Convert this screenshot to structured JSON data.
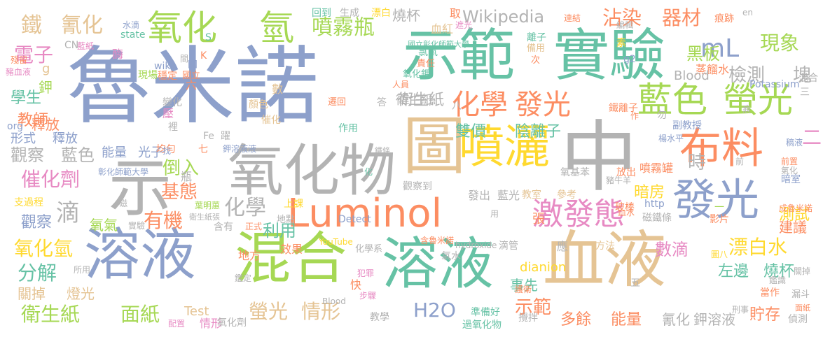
{
  "colors": {
    "blue": "#8DA0CB",
    "orange": "#FC8D62",
    "green": "#A6D854",
    "yellow": "#FFD92F",
    "tan": "#E5C494",
    "gray": "#B3B3B3",
    "pink": "#E78AC3",
    "teal": "#66C2A5"
  },
  "words": [
    {
      "text": "魯米諾",
      "color": "#8DA0CB"
    },
    {
      "text": "中",
      "color": "#B3B3B3"
    },
    {
      "text": "示範",
      "color": "#66C2A5"
    },
    {
      "text": "實驗",
      "color": "#66C2A5"
    },
    {
      "text": "圖",
      "color": "#E5C494"
    },
    {
      "text": "噴灑",
      "color": "#FFD92F"
    },
    {
      "text": "氧化物",
      "color": "#B3B3B3"
    },
    {
      "text": "示",
      "color": "#B3B3B3"
    },
    {
      "text": "溶液",
      "color": "#8DA0CB"
    },
    {
      "text": "混合",
      "color": "#A6D854"
    },
    {
      "text": "溶液",
      "color": "#66C2A5"
    },
    {
      "text": "血液",
      "color": "#E5C494"
    },
    {
      "text": "Luminol",
      "color": "#FC8D62"
    },
    {
      "text": "布料",
      "color": "#FC8D62"
    },
    {
      "text": "發光",
      "color": "#8DA0CB"
    },
    {
      "text": "氧化",
      "color": "#A6D854"
    },
    {
      "text": "氫",
      "color": "#A6D854"
    },
    {
      "text": "藍色",
      "color": "#A6D854"
    },
    {
      "text": "螢光",
      "color": "#A6D854"
    },
    {
      "text": "化學",
      "color": "#FC8D62"
    },
    {
      "text": "發光",
      "color": "#FC8D62"
    },
    {
      "text": "激發態",
      "color": "#E78AC3"
    },
    {
      "text": "噴霧瓶",
      "color": "#A6D854"
    },
    {
      "text": "鐵",
      "color": "#E5C494"
    },
    {
      "text": "氰化",
      "color": "#E5C494"
    },
    {
      "text": "mL",
      "color": "#8DA0CB"
    },
    {
      "text": "現象",
      "color": "#A6D854"
    },
    {
      "text": "沾染",
      "color": "#FC8D62"
    },
    {
      "text": "器材",
      "color": "#FC8D62"
    },
    {
      "text": "Wikipedia",
      "color": "#B3B3B3"
    },
    {
      "text": "檢測",
      "color": "#B3B3B3"
    },
    {
      "text": "塊",
      "color": "#B3B3B3"
    },
    {
      "text": "黑板",
      "color": "#A6D854"
    },
    {
      "text": "蒸餾水",
      "color": "#FC8D62"
    },
    {
      "text": "Blood",
      "color": "#B3B3B3"
    },
    {
      "text": "電子",
      "color": "#E78AC3"
    },
    {
      "text": "學生",
      "color": "#66C2A5"
    },
    {
      "text": "教師",
      "color": "#FC8D62"
    },
    {
      "text": "雙價",
      "color": "#66C2A5"
    },
    {
      "text": "陰離子",
      "color": "#66C2A5"
    },
    {
      "text": "衛生紙",
      "color": "#B3B3B3"
    },
    {
      "text": "觀察",
      "color": "#B3B3B3"
    },
    {
      "text": "藍色",
      "color": "#B3B3B3"
    },
    {
      "text": "催化劑",
      "color": "#E78AC3"
    },
    {
      "text": "能量",
      "color": "#8DA0CB"
    },
    {
      "text": "光子",
      "color": "#8DA0CB"
    },
    {
      "text": "倒入",
      "color": "#A6D854"
    },
    {
      "text": "基態",
      "color": "#FC8D62"
    },
    {
      "text": "有機",
      "color": "#FC8D62"
    },
    {
      "text": "化學",
      "color": "#B3B3B3"
    },
    {
      "text": "滴",
      "color": "#B3B3B3"
    },
    {
      "text": "氧氣",
      "color": "#A6D854"
    },
    {
      "text": "觀察",
      "color": "#8DA0CB"
    },
    {
      "text": "氧化氫",
      "color": "#FFD92F"
    },
    {
      "text": "分解",
      "color": "#66C2A5"
    },
    {
      "text": "關掉",
      "color": "#E5C494"
    },
    {
      "text": "燈光",
      "color": "#E5C494"
    },
    {
      "text": "衛生紙",
      "color": "#A6D854"
    },
    {
      "text": "面紙",
      "color": "#A6D854"
    },
    {
      "text": "螢光",
      "color": "#E5C494"
    },
    {
      "text": "情形",
      "color": "#E5C494"
    },
    {
      "text": "H2O",
      "color": "#8DA0CB"
    },
    {
      "text": "示範",
      "color": "#FC8D62"
    },
    {
      "text": "多餘",
      "color": "#FC8D62"
    },
    {
      "text": "能量",
      "color": "#FC8D62"
    },
    {
      "text": "氰化",
      "color": "#B3B3B3"
    },
    {
      "text": "鉀溶液",
      "color": "#B3B3B3"
    },
    {
      "text": "貯存",
      "color": "#FC8D62"
    },
    {
      "text": "漂白水",
      "color": "#FFD92F"
    },
    {
      "text": "數滴",
      "color": "#E78AC3"
    },
    {
      "text": "左邊",
      "color": "#66C2A5"
    },
    {
      "text": "燒杯",
      "color": "#66C2A5"
    },
    {
      "text": "dianion",
      "color": "#FFD92F"
    },
    {
      "text": "事先",
      "color": "#66C2A5"
    },
    {
      "text": "測試",
      "color": "#FFD92F"
    },
    {
      "text": "建議",
      "color": "#FC8D62"
    },
    {
      "text": "暗房",
      "color": "#FFD92F"
    },
    {
      "text": "時",
      "color": "#B3B3B3"
    },
    {
      "text": "二",
      "color": "#E78AC3"
    },
    {
      "text": "利用",
      "color": "#66C2A5"
    },
    {
      "text": "釋放",
      "color": "#FC8D62"
    },
    {
      "text": "形式",
      "color": "#8DA0CB"
    },
    {
      "text": "釋放",
      "color": "#8DA0CB"
    },
    {
      "text": "燒杯",
      "color": "#B3B3B3"
    },
    {
      "text": "生成",
      "color": "#B3B3B3"
    },
    {
      "text": "回到",
      "color": "#66C2A5"
    },
    {
      "text": "漂白",
      "color": "#FFD92F"
    },
    {
      "text": "血紅",
      "color": "#E5C494"
    },
    {
      "text": "取",
      "color": "#FC8D62"
    },
    {
      "text": "連結",
      "color": "#FC8D62"
    },
    {
      "text": "痕跡",
      "color": "#FC8D62"
    },
    {
      "text": "en",
      "color": "#B3B3B3"
    },
    {
      "text": "離子",
      "color": "#66C2A5"
    },
    {
      "text": "備用",
      "color": "#E5C494"
    },
    {
      "text": "國立彰化師範大學",
      "color": "#66C2A5"
    },
    {
      "text": "氯氣",
      "color": "#66C2A5"
    },
    {
      "text": "責任",
      "color": "#FC8D62"
    },
    {
      "text": "氧化鉀",
      "color": "#66C2A5"
    },
    {
      "text": "Potassium",
      "color": "#8DA0CB"
    },
    {
      "text": "混合",
      "color": "#B3B3B3"
    },
    {
      "text": "鐵離子",
      "color": "#FC8D62"
    },
    {
      "text": "YouTube",
      "color": "#FFD92F"
    },
    {
      "text": "化學系",
      "color": "#B3B3B3"
    },
    {
      "text": "Detect",
      "color": "#8DA0CB"
    },
    {
      "text": "http",
      "color": "#8DA0CB"
    },
    {
      "text": "磁鐵條",
      "color": "#B3B3B3"
    },
    {
      "text": "影片",
      "color": "#FC8D62"
    },
    {
      "text": "玻棒",
      "color": "#FC8D62"
    },
    {
      "text": "噴霧罐",
      "color": "#FC8D62"
    },
    {
      "text": "氧基苯",
      "color": "#B3B3B3"
    },
    {
      "text": "hydroxide",
      "color": "#B3B3B3"
    },
    {
      "text": "Test",
      "color": "#E5C494"
    },
    {
      "text": "情形",
      "color": "#E78AC3"
    },
    {
      "text": "氧化劑",
      "color": "#B3B3B3"
    },
    {
      "text": "教學",
      "color": "#B3B3B3"
    },
    {
      "text": "準備好",
      "color": "#66C2A5"
    },
    {
      "text": "過氧化物",
      "color": "#66C2A5"
    },
    {
      "text": "攪拌",
      "color": "#B3B3B3"
    },
    {
      "text": "當作",
      "color": "#FC8D62"
    },
    {
      "text": "漏斗",
      "color": "#B3B3B3"
    },
    {
      "text": "偵測",
      "color": "#B3B3B3"
    },
    {
      "text": "面紙",
      "color": "#FC8D62"
    },
    {
      "text": "鉀",
      "color": "#A6D854"
    },
    {
      "text": "wiki",
      "color": "#8DA0CB"
    },
    {
      "text": "現場",
      "color": "#A6D854"
    },
    {
      "text": "CN",
      "color": "#B3B3B3"
    },
    {
      "text": "state",
      "color": "#66C2A5"
    },
    {
      "text": "水滴",
      "color": "#8DA0CB"
    },
    {
      "text": "酶",
      "color": "#E78AC3"
    },
    {
      "text": "org",
      "color": "#8DA0CB"
    },
    {
      "text": "變化",
      "color": "#B3B3B3"
    },
    {
      "text": "穩定",
      "color": "#FC8D62"
    },
    {
      "text": "Fe",
      "color": "#B3B3B3"
    },
    {
      "text": "躍",
      "color": "#B3B3B3"
    },
    {
      "text": "均勻",
      "color": "#FC8D62"
    },
    {
      "text": "七",
      "color": "#FC8D62"
    },
    {
      "text": "數",
      "color": "#E5C494"
    },
    {
      "text": "顏色",
      "color": "#E5C494"
    },
    {
      "text": "催化",
      "color": "#E5C494"
    },
    {
      "text": "作用",
      "color": "#66C2A5"
    },
    {
      "text": "遷回",
      "color": "#FC8D62"
    },
    {
      "text": "答",
      "color": "#B3B3B3"
    },
    {
      "text": "衛生紙",
      "color": "#B3B3B3"
    },
    {
      "text": "發出",
      "color": "#B3B3B3"
    },
    {
      "text": "藍光",
      "color": "#B3B3B3"
    },
    {
      "text": "觀察到",
      "color": "#B3B3B3"
    },
    {
      "text": "教室",
      "color": "#E5C494"
    },
    {
      "text": "參考",
      "color": "#E5C494"
    },
    {
      "text": "張",
      "color": "#FC8D62"
    },
    {
      "text": "放出",
      "color": "#FC8D62"
    },
    {
      "text": "刑事",
      "color": "#B3B3B3"
    },
    {
      "text": "豬牛羊",
      "color": "#B3B3B3"
    },
    {
      "text": "地方",
      "color": "#FC8D62"
    },
    {
      "text": "效果",
      "color": "#FC8D62"
    },
    {
      "text": "上課",
      "color": "#FFD92F"
    },
    {
      "text": "正式",
      "color": "#FC8D62"
    },
    {
      "text": "含有",
      "color": "#B3B3B3"
    },
    {
      "text": "地點",
      "color": "#B3B3B3"
    },
    {
      "text": "葉明蕙",
      "color": "#A6D854"
    },
    {
      "text": "衛生紙張",
      "color": "#B3B3B3"
    },
    {
      "text": "快",
      "color": "#FC8D62"
    },
    {
      "text": "步驟",
      "color": "#E78AC3"
    },
    {
      "text": "鑑定",
      "color": "#B3B3B3"
    },
    {
      "text": "含魯米諾",
      "color": "#FC8D62"
    },
    {
      "text": "氧水",
      "color": "#B3B3B3"
    },
    {
      "text": "滴管",
      "color": "#B3B3B3"
    },
    {
      "text": "應",
      "color": "#B3B3B3"
    },
    {
      "text": "方法",
      "color": "#E5C494"
    },
    {
      "text": "五",
      "color": "#B3B3B3"
    },
    {
      "text": "犯罪",
      "color": "#E78AC3"
    },
    {
      "text": "護衛",
      "color": "#FC8D62"
    },
    {
      "text": "副教授",
      "color": "#8DA0CB"
    },
    {
      "text": "楊水平",
      "color": "#8DA0CB"
    },
    {
      "text": "支過程",
      "color": "#FFD92F"
    },
    {
      "text": "所用",
      "color": "#B3B3B3"
    },
    {
      "text": "配置",
      "color": "#E78AC3"
    },
    {
      "text": "Blood",
      "color": "#B3B3B3"
    },
    {
      "text": "鑑識",
      "color": "#B3B3B3"
    },
    {
      "text": "暗室",
      "color": "#8DA0CB"
    },
    {
      "text": "成魯米諾",
      "color": "#FC8D62"
    },
    {
      "text": "前",
      "color": "#B3B3B3"
    },
    {
      "text": "前置",
      "color": "#FC8D62"
    },
    {
      "text": "圖八",
      "color": "#FFD92F"
    },
    {
      "text": "勿",
      "color": "#B3B3B3"
    },
    {
      "text": "g",
      "color": "#E5C494"
    },
    {
      "text": "g2",
      "color": "#8DA0CB"
    },
    {
      "text": "K",
      "color": "#FC8D62"
    },
    {
      "text": "S",
      "color": "#66C2A5"
    },
    {
      "text": "四",
      "color": "#8DA0CB"
    },
    {
      "text": "國立",
      "color": "#FC8D62"
    },
    {
      "text": "六",
      "color": "#FC8D62"
    },
    {
      "text": "人員",
      "color": "#FC8D62"
    },
    {
      "text": "八",
      "color": "#B3B3B3"
    },
    {
      "text": "裡",
      "color": "#B3B3B3"
    },
    {
      "text": "壓",
      "color": "#E78AC3"
    },
    {
      "text": "三",
      "color": "#B3B3B3"
    },
    {
      "text": "次",
      "color": "#FC8D62"
    },
    {
      "text": "遮光",
      "color": "#E78AC3"
    },
    {
      "text": "編輯",
      "color": "#B3B3B3"
    },
    {
      "text": "素",
      "color": "#FFD92F"
    },
    {
      "text": "彰化師範大學",
      "color": "#8DA0CB"
    },
    {
      "text": "鉀溶液液",
      "color": "#8DA0CB"
    },
    {
      "text": "鐵條",
      "color": "#B3B3B3"
    },
    {
      "text": "氣化",
      "color": "#B3B3B3"
    },
    {
      "text": "找",
      "color": "#8DA0CB"
    },
    {
      "text": "磁",
      "color": "#B3B3B3"
    },
    {
      "text": "豬血液",
      "color": "#E78AC3"
    },
    {
      "text": "殘留",
      "color": "#FC8D62"
    },
    {
      "text": "藍紙",
      "color": "#E78AC3"
    },
    {
      "text": "實驗",
      "color": "#B3B3B3"
    },
    {
      "text": "血水",
      "color": "#FC8D62"
    },
    {
      "text": "關掉",
      "color": "#B3B3B3"
    },
    {
      "text": "稿液",
      "color": "#8DA0CB"
    },
    {
      "text": "瓶",
      "color": "#B3B3B3"
    },
    {
      "text": "間",
      "color": "#B3B3B3"
    },
    {
      "text": "一",
      "color": "#A6D854"
    },
    {
      "text": "化",
      "color": "#66C2A5"
    },
    {
      "text": "用",
      "color": "#B3B3B3"
    },
    {
      "text": "作",
      "color": "#FC8D62"
    },
    {
      "text": "痕",
      "color": "#B3B3B3"
    }
  ]
}
